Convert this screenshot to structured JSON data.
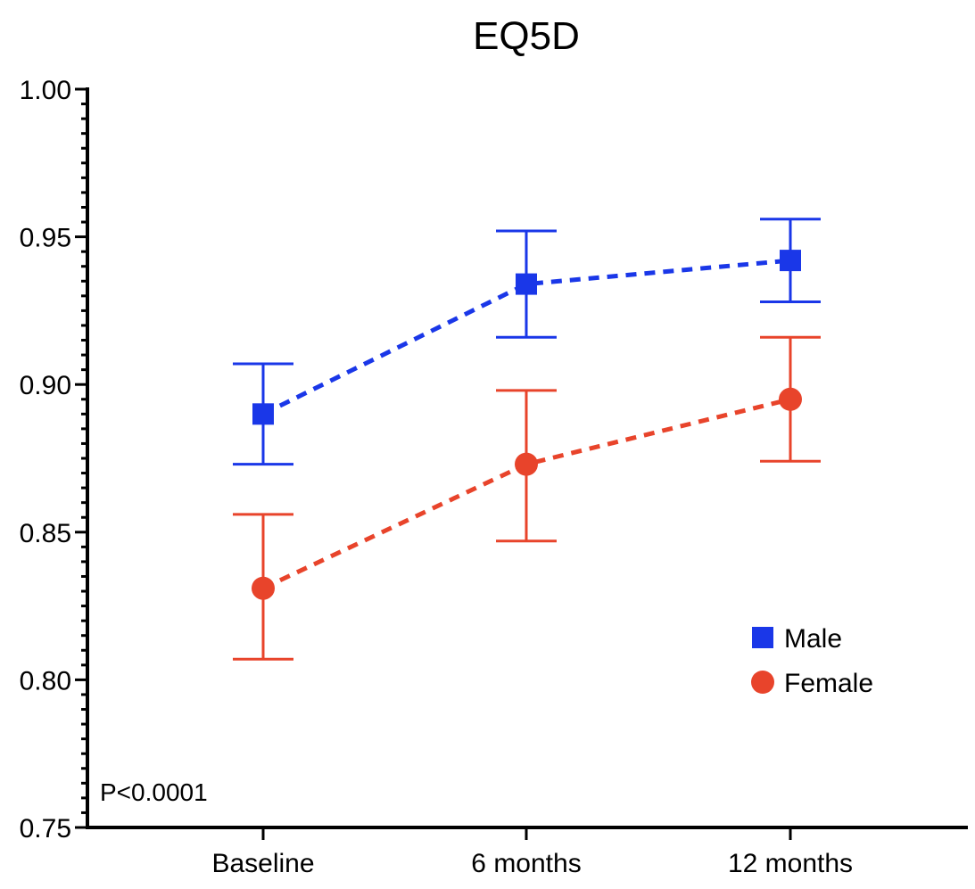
{
  "chart_data": {
    "type": "line",
    "title": "EQ5D",
    "xlabel": "",
    "ylabel": "",
    "categories": [
      "Baseline",
      "6 months",
      "12 months"
    ],
    "ylim": [
      0.75,
      1.0
    ],
    "yticks": [
      "1.00",
      "0.95",
      "0.90",
      "0.85",
      "0.80",
      "0.75"
    ],
    "ytick_values": [
      1.0,
      0.95,
      0.9,
      0.85,
      0.8,
      0.75
    ],
    "minor_ticks_per_major": 10,
    "grid": false,
    "legend_position": "lower-right",
    "annotation": "P<0.0001",
    "series": [
      {
        "name": "Male",
        "marker": "square",
        "color": "#1a37e8",
        "values": [
          0.89,
          0.934,
          0.942
        ],
        "lower": [
          0.873,
          0.916,
          0.928
        ],
        "upper": [
          0.907,
          0.952,
          0.956
        ]
      },
      {
        "name": "Female",
        "marker": "circle",
        "color": "#e8442b",
        "values": [
          0.831,
          0.873,
          0.895
        ],
        "lower": [
          0.807,
          0.847,
          0.874
        ],
        "upper": [
          0.856,
          0.898,
          0.916
        ]
      }
    ]
  }
}
